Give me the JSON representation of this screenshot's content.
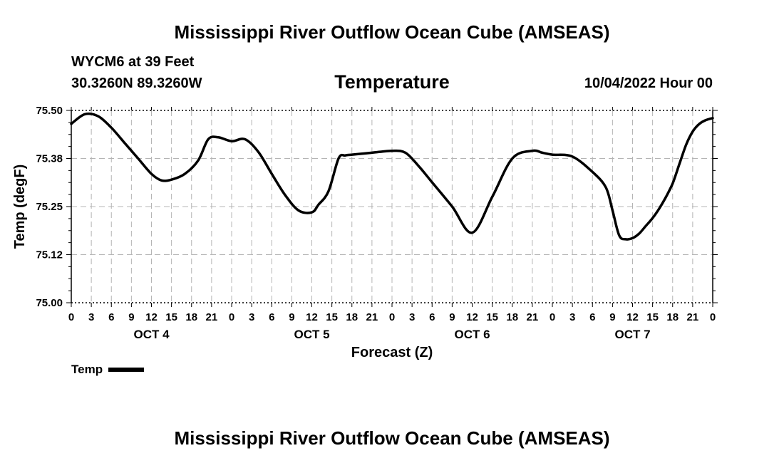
{
  "header": {
    "main_title": "Mississippi River Outflow Ocean Cube (AMSEAS)",
    "station": "WYCM6 at 39 Feet",
    "coordinates": "30.3260N  89.3260W",
    "subtitle": "Temperature",
    "datetime": "10/04/2022 Hour 00",
    "footer_title": "Mississippi River Outflow Ocean Cube (AMSEAS)"
  },
  "legend": {
    "label": "Temp"
  },
  "colors": {
    "line": "#000000",
    "grid": "#b4b4b4"
  },
  "chart_data": {
    "type": "line",
    "title": "Temperature",
    "xlabel": "Forecast (Z)",
    "ylabel": "Temp (degF)",
    "xlim": [
      0,
      96
    ],
    "ylim": [
      75.0,
      75.5
    ],
    "yticks": [
      75.0,
      75.125,
      75.25,
      75.375,
      75.5
    ],
    "ytick_labels": [
      "75.00",
      "75.12",
      "75.25",
      "75.38",
      "75.50"
    ],
    "xticks": [
      0,
      3,
      6,
      9,
      12,
      15,
      18,
      21,
      24,
      27,
      30,
      33,
      36,
      39,
      42,
      45,
      48,
      51,
      54,
      57,
      60,
      63,
      66,
      69,
      72,
      75,
      78,
      81,
      84,
      87,
      90,
      93,
      96
    ],
    "xtick_labels": [
      "0",
      "3",
      "6",
      "9",
      "12",
      "15",
      "18",
      "21",
      "0",
      "3",
      "6",
      "9",
      "12",
      "15",
      "18",
      "21",
      "0",
      "3",
      "6",
      "9",
      "12",
      "15",
      "18",
      "21",
      "0",
      "3",
      "6",
      "9",
      "12",
      "15",
      "18",
      "21",
      "0"
    ],
    "day_labels": [
      {
        "x": 12,
        "label": "OCT 4"
      },
      {
        "x": 36,
        "label": "OCT 5"
      },
      {
        "x": 60,
        "label": "OCT 6"
      },
      {
        "x": 84,
        "label": "OCT 7"
      }
    ],
    "grid": true,
    "series": [
      {
        "name": "Temp",
        "x": [
          0,
          2,
          4,
          6,
          8,
          10,
          12,
          13.5,
          15,
          17,
          19,
          20.5,
          22,
          24,
          26,
          28,
          30,
          32,
          34,
          36,
          37,
          38.5,
          40,
          41,
          42,
          45,
          48,
          50,
          52,
          54,
          57,
          60,
          63,
          66,
          69,
          70.5,
          72,
          75,
          78,
          80,
          81,
          82,
          83,
          84,
          85,
          86,
          87,
          88,
          89,
          90,
          91,
          92,
          93,
          94,
          95,
          96
        ],
        "y": [
          75.465,
          75.49,
          75.485,
          75.455,
          75.415,
          75.375,
          75.335,
          75.318,
          75.32,
          75.335,
          75.37,
          75.425,
          75.43,
          75.42,
          75.425,
          75.392,
          75.335,
          75.28,
          75.24,
          75.235,
          75.255,
          75.29,
          75.375,
          75.383,
          75.385,
          75.39,
          75.395,
          75.39,
          75.355,
          75.313,
          75.25,
          75.182,
          75.275,
          75.375,
          75.395,
          75.39,
          75.385,
          75.38,
          75.34,
          75.3,
          75.24,
          75.175,
          75.165,
          75.168,
          75.18,
          75.2,
          75.22,
          75.245,
          75.275,
          75.31,
          75.36,
          75.41,
          75.445,
          75.465,
          75.475,
          75.48
        ]
      }
    ]
  }
}
